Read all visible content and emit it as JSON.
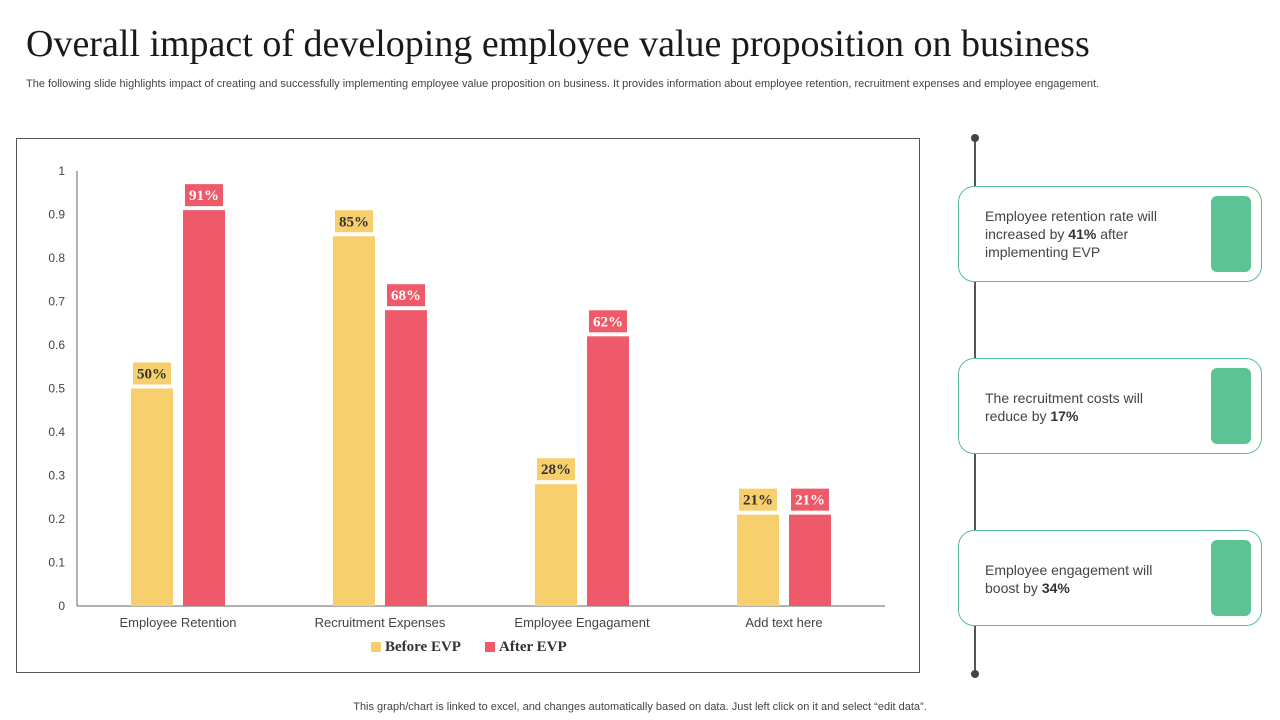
{
  "title": "Overall impact of developing employee value proposition on business",
  "subtitle": "The following slide highlights impact of creating and successfully implementing employee value proposition on business. It provides information about employee retention, recruitment expenses and employee engagement.",
  "footer": "This graph/chart is linked to excel,  and changes automatically based on data. Just left click on it and select “edit data”.",
  "colors": {
    "before": "#f7cf6d",
    "after": "#ee5a69",
    "accent": "#5cc394"
  },
  "chart_data": {
    "type": "bar",
    "title": "",
    "xlabel": "",
    "ylabel": "",
    "ylim": [
      0,
      1
    ],
    "yticks": [
      0,
      0.1,
      0.2,
      0.3,
      0.4,
      0.5,
      0.6,
      0.7,
      0.8,
      0.9,
      1
    ],
    "ytick_labels": [
      "0",
      "0.1",
      "0.2",
      "0.3",
      "0.4",
      "0.5",
      "0.6",
      "0.7",
      "0.8",
      "0.9",
      "1"
    ],
    "categories": [
      "Employee Retention",
      "Recruitment Expenses",
      "Employee Engagament",
      "Add text here"
    ],
    "series": [
      {
        "name": "Before EVP",
        "values": [
          0.5,
          0.85,
          0.28,
          0.21
        ],
        "labels": [
          "50%",
          "85%",
          "28%",
          "21%"
        ]
      },
      {
        "name": "After EVP",
        "values": [
          0.91,
          0.68,
          0.62,
          0.21
        ],
        "labels": [
          "91%",
          "68%",
          "62%",
          "21%"
        ]
      }
    ],
    "legend": "bottom",
    "grid": false
  },
  "cards": [
    {
      "pre": "Employee retention rate will increased by ",
      "value": "41%",
      "post": " after implementing EVP"
    },
    {
      "pre": "The recruitment costs will reduce by ",
      "value": "17%",
      "post": ""
    },
    {
      "pre": "Employee engagement will boost by ",
      "value": "34%",
      "post": ""
    }
  ]
}
